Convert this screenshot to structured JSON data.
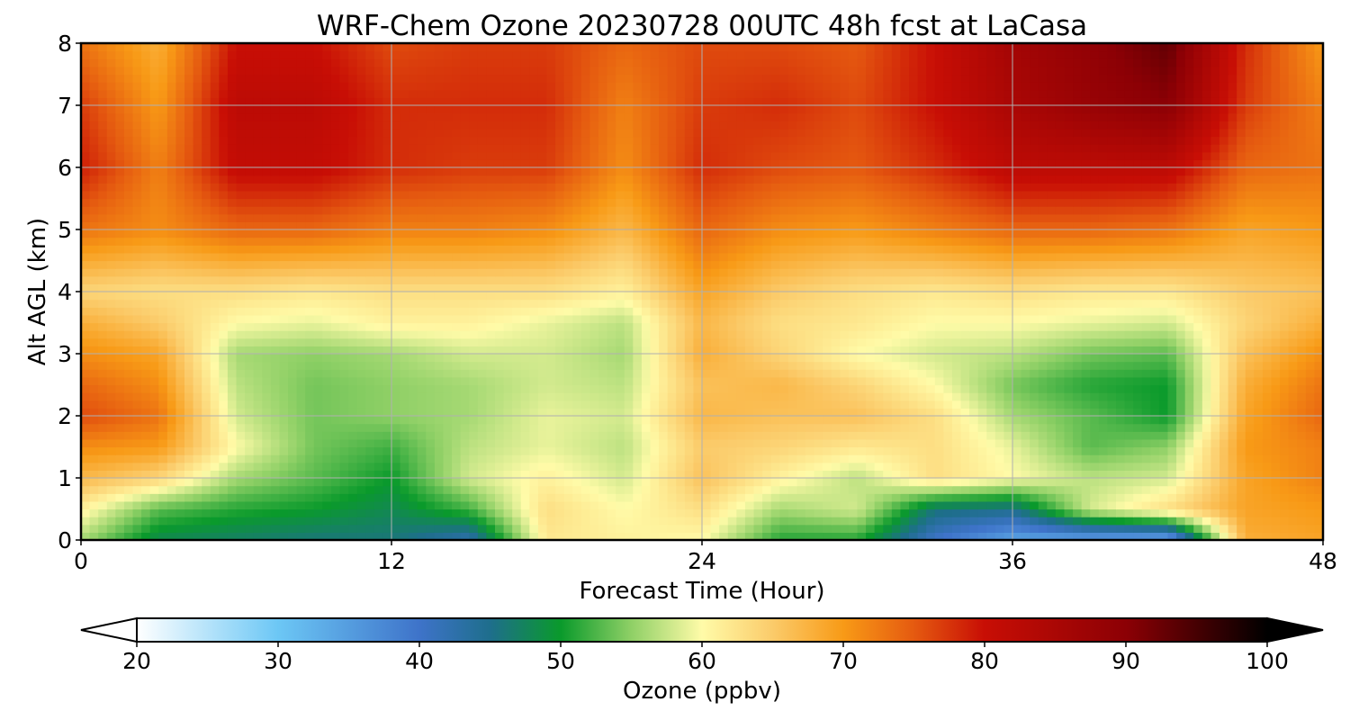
{
  "chart_data": {
    "type": "heatmap",
    "title": "WRF-Chem Ozone  20230728 00UTC 48h fcst at LaCasa",
    "xlabel": "Forecast Time (Hour)",
    "ylabel": "Alt AGL (km)",
    "xlim": [
      0,
      48
    ],
    "ylim": [
      0,
      8
    ],
    "xticks": [
      0,
      12,
      24,
      36,
      48
    ],
    "yticks": [
      0,
      1,
      2,
      3,
      4,
      5,
      6,
      7,
      8
    ],
    "grid": true,
    "x": [
      0,
      3,
      6,
      9,
      12,
      15,
      18,
      21,
      24,
      27,
      30,
      33,
      36,
      39,
      42,
      45,
      48
    ],
    "y": [
      0,
      0.5,
      1,
      1.5,
      2,
      2.5,
      3,
      3.5,
      4,
      5,
      6,
      7,
      8
    ],
    "z": [
      [
        56,
        48,
        47,
        46,
        46,
        42,
        62,
        61,
        60,
        51,
        51,
        40,
        34,
        34,
        33,
        68,
        69
      ],
      [
        61,
        53,
        51,
        50,
        48,
        52,
        63,
        60,
        63,
        56,
        58,
        46,
        45,
        58,
        63,
        69,
        70
      ],
      [
        67,
        64,
        56,
        53,
        50,
        58,
        61,
        58,
        66,
        61,
        57,
        63,
        60,
        57,
        58,
        69,
        72
      ],
      [
        71,
        70,
        60,
        54,
        52,
        57,
        59,
        57,
        65,
        64,
        62,
        63,
        59,
        53,
        55,
        70,
        72
      ],
      [
        76,
        73,
        58,
        54,
        55,
        56,
        59,
        58,
        67,
        66,
        66,
        63,
        56,
        53,
        50,
        69,
        74
      ],
      [
        74,
        71,
        57,
        54,
        55,
        56,
        58,
        57,
        66,
        67,
        64,
        60,
        54,
        51,
        50,
        68,
        73
      ],
      [
        71,
        69,
        56,
        55,
        56,
        58,
        58,
        56,
        68,
        64,
        60,
        58,
        57,
        54,
        53,
        66,
        71
      ],
      [
        68,
        65,
        60,
        59,
        61,
        61,
        59,
        57,
        67,
        63,
        62,
        60,
        60,
        59,
        58,
        64,
        68
      ],
      [
        64,
        63,
        63,
        62,
        63,
        63,
        63,
        61,
        69,
        65,
        63,
        62,
        63,
        62,
        62,
        65,
        66
      ],
      [
        73,
        71,
        74,
        74,
        72,
        72,
        71,
        67,
        74,
        71,
        70,
        72,
        74,
        74,
        73,
        69,
        70
      ],
      [
        79,
        72,
        81,
        81,
        78,
        77,
        77,
        71,
        78,
        76,
        75,
        78,
        82,
        82,
        82,
        74,
        73
      ],
      [
        77,
        70,
        82,
        82,
        78,
        78,
        78,
        72,
        77,
        78,
        76,
        80,
        85,
        88,
        90,
        77,
        72
      ],
      [
        73,
        68,
        80,
        80,
        76,
        77,
        77,
        74,
        76,
        76,
        75,
        80,
        86,
        89,
        93,
        78,
        70
      ]
    ],
    "colorbar": {
      "label": "Ozone  (ppbv)",
      "min": 20,
      "max": 100,
      "ticks": [
        20,
        30,
        40,
        50,
        60,
        70,
        80,
        90,
        100
      ],
      "extend": "both",
      "stops": [
        {
          "v": 20,
          "c": "#ffffff"
        },
        {
          "v": 30,
          "c": "#6cc7f5"
        },
        {
          "v": 40,
          "c": "#3e73c9"
        },
        {
          "v": 45,
          "c": "#1e6e8c"
        },
        {
          "v": 50,
          "c": "#0a9a2b"
        },
        {
          "v": 55,
          "c": "#8fd066"
        },
        {
          "v": 60,
          "c": "#fffba8"
        },
        {
          "v": 65,
          "c": "#fbcb6a"
        },
        {
          "v": 70,
          "c": "#f89a16"
        },
        {
          "v": 75,
          "c": "#e55a10"
        },
        {
          "v": 80,
          "c": "#c80e05"
        },
        {
          "v": 90,
          "c": "#8c0005"
        },
        {
          "v": 100,
          "c": "#000000"
        }
      ]
    }
  }
}
